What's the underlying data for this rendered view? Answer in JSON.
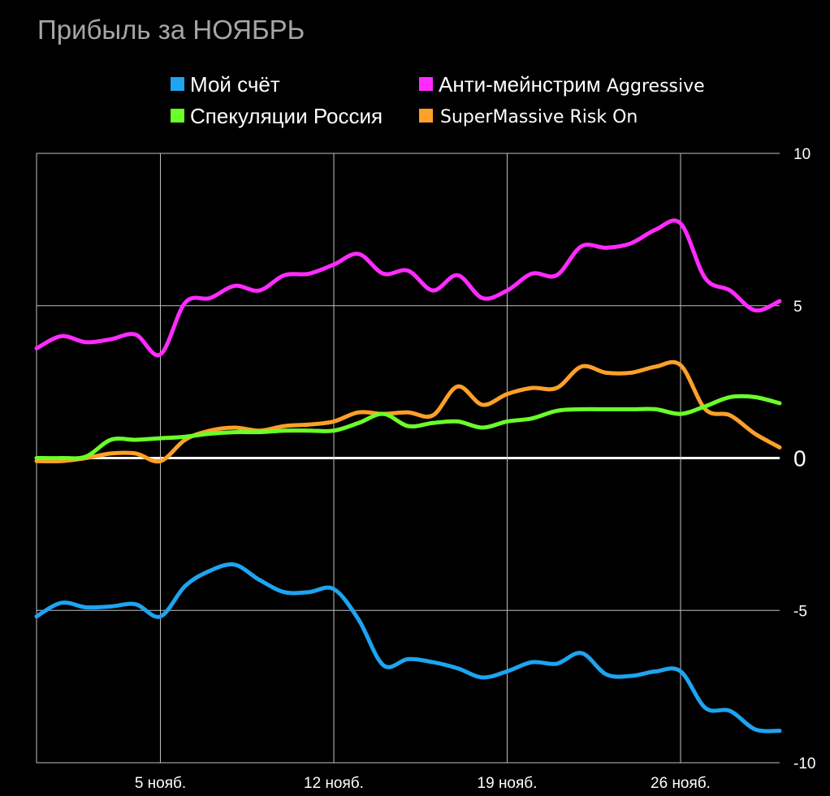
{
  "chart_data": {
    "type": "line",
    "title": "Прибыль за НОЯБРЬ",
    "ylim": [
      -10,
      10
    ],
    "yticks": [
      "10",
      "5",
      "0",
      "-5",
      "-10"
    ],
    "xticks": [
      "5 нояб.",
      "12 нояб.",
      "19 нояб.",
      "26 нояб."
    ],
    "grid": true,
    "legend_position": "top",
    "series": [
      {
        "name": "Мой счёт",
        "color": "#1ea4f0",
        "x": [
          "2023-10-31",
          "2023-11-01",
          "2023-11-02",
          "2023-11-03",
          "2023-11-04",
          "2023-11-05",
          "2023-11-06",
          "2023-11-07",
          "2023-11-08",
          "2023-11-09",
          "2023-11-10",
          "2023-11-11",
          "2023-11-12",
          "2023-11-13",
          "2023-11-14",
          "2023-11-15",
          "2023-11-16",
          "2023-11-17",
          "2023-11-18",
          "2023-11-19",
          "2023-11-20",
          "2023-11-21",
          "2023-11-22",
          "2023-11-23",
          "2023-11-24",
          "2023-11-25",
          "2023-11-26",
          "2023-11-27",
          "2023-11-28",
          "2023-11-29",
          "2023-11-30"
        ],
        "values": [
          -5.2,
          -4.75,
          -4.9,
          -4.87,
          -4.8,
          -5.2,
          -4.2,
          -3.7,
          -3.5,
          -4.0,
          -4.4,
          -4.4,
          -4.3,
          -5.3,
          -6.8,
          -6.6,
          -6.7,
          -6.9,
          -7.2,
          -7.0,
          -6.7,
          -6.75,
          -6.4,
          -7.1,
          -7.15,
          -7.0,
          -7.0,
          -8.2,
          -8.3,
          -8.9,
          -8.95
        ]
      },
      {
        "name": "Анти-мейнстрим Aggressive",
        "color": "#ff2bff",
        "x": [
          "2023-10-31",
          "2023-11-01",
          "2023-11-02",
          "2023-11-03",
          "2023-11-04",
          "2023-11-05",
          "2023-11-06",
          "2023-11-07",
          "2023-11-08",
          "2023-11-09",
          "2023-11-10",
          "2023-11-11",
          "2023-11-12",
          "2023-11-13",
          "2023-11-14",
          "2023-11-15",
          "2023-11-16",
          "2023-11-17",
          "2023-11-18",
          "2023-11-19",
          "2023-11-20",
          "2023-11-21",
          "2023-11-22",
          "2023-11-23",
          "2023-11-24",
          "2023-11-25",
          "2023-11-26",
          "2023-11-27",
          "2023-11-28",
          "2023-11-29",
          "2023-11-30"
        ],
        "values": [
          3.6,
          4.0,
          3.8,
          3.9,
          4.05,
          3.4,
          5.1,
          5.25,
          5.65,
          5.5,
          6.0,
          6.05,
          6.35,
          6.7,
          6.05,
          6.15,
          5.5,
          6.0,
          5.25,
          5.5,
          6.05,
          6.0,
          6.95,
          6.9,
          7.05,
          7.5,
          7.7,
          5.9,
          5.5,
          4.85,
          5.15
        ]
      },
      {
        "name": "Спекуляции Россия",
        "color": "#6bff2a",
        "x": [
          "2023-10-31",
          "2023-11-01",
          "2023-11-02",
          "2023-11-03",
          "2023-11-04",
          "2023-11-05",
          "2023-11-06",
          "2023-11-07",
          "2023-11-08",
          "2023-11-09",
          "2023-11-10",
          "2023-11-11",
          "2023-11-12",
          "2023-11-13",
          "2023-11-14",
          "2023-11-15",
          "2023-11-16",
          "2023-11-17",
          "2023-11-18",
          "2023-11-19",
          "2023-11-20",
          "2023-11-21",
          "2023-11-22",
          "2023-11-23",
          "2023-11-24",
          "2023-11-25",
          "2023-11-26",
          "2023-11-27",
          "2023-11-28",
          "2023-11-29",
          "2023-11-30"
        ],
        "values": [
          0.0,
          0.0,
          0.05,
          0.6,
          0.6,
          0.65,
          0.7,
          0.8,
          0.85,
          0.85,
          0.9,
          0.9,
          0.9,
          1.15,
          1.45,
          1.05,
          1.15,
          1.2,
          1.0,
          1.2,
          1.3,
          1.55,
          1.6,
          1.6,
          1.6,
          1.6,
          1.45,
          1.7,
          2.0,
          2.0,
          1.8
        ]
      },
      {
        "name": "SuperMassive Risk On",
        "color": "#ffa028",
        "x": [
          "2023-10-31",
          "2023-11-01",
          "2023-11-02",
          "2023-11-03",
          "2023-11-04",
          "2023-11-05",
          "2023-11-06",
          "2023-11-07",
          "2023-11-08",
          "2023-11-09",
          "2023-11-10",
          "2023-11-11",
          "2023-11-12",
          "2023-11-13",
          "2023-11-14",
          "2023-11-15",
          "2023-11-16",
          "2023-11-17",
          "2023-11-18",
          "2023-11-19",
          "2023-11-20",
          "2023-11-21",
          "2023-11-22",
          "2023-11-23",
          "2023-11-24",
          "2023-11-25",
          "2023-11-26",
          "2023-11-27",
          "2023-11-28",
          "2023-11-29",
          "2023-11-30"
        ],
        "values": [
          -0.1,
          -0.1,
          0.0,
          0.15,
          0.15,
          -0.1,
          0.6,
          0.9,
          1.0,
          0.9,
          1.05,
          1.1,
          1.2,
          1.5,
          1.45,
          1.5,
          1.4,
          2.35,
          1.75,
          2.1,
          2.3,
          2.3,
          3.0,
          2.8,
          2.8,
          3.0,
          3.05,
          1.6,
          1.4,
          0.8,
          0.35
        ]
      }
    ]
  }
}
